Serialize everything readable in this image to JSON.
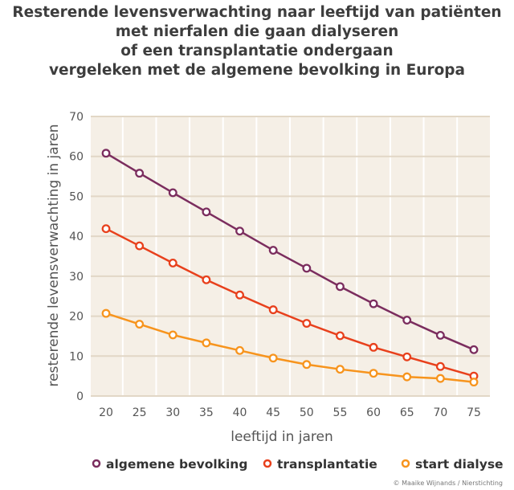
{
  "chart_data": {
    "type": "line",
    "title": [
      "Resterende levensverwachting naar leeftijd van patiënten",
      "met nierfalen die gaan dialyseren",
      "of een transplantatie ondergaan",
      "vergeleken met de algemene bevolking in Europa"
    ],
    "xlabel": "leeftijd in jaren",
    "ylabel": "resterende levensverwachting  in jaren",
    "x": [
      20,
      25,
      30,
      35,
      40,
      45,
      50,
      55,
      60,
      65,
      70,
      75
    ],
    "xticks": [
      "20",
      "25",
      "30",
      "35",
      "40",
      "45",
      "50",
      "55",
      "60",
      "65",
      "70",
      "75"
    ],
    "yticks": [
      "0",
      "10",
      "20",
      "30",
      "40",
      "50",
      "60",
      "70"
    ],
    "ylim": [
      0,
      70
    ],
    "grid": "horizontal",
    "legend_placement": "bottom",
    "series": [
      {
        "name": "algemene bevolking",
        "color": "#7b2d5e",
        "values": [
          60.8,
          55.8,
          50.9,
          46.1,
          41.3,
          36.5,
          32.0,
          27.4,
          23.1,
          19.0,
          15.2,
          11.6
        ]
      },
      {
        "name": "transplantatie",
        "color": "#e8401c",
        "values": [
          41.9,
          37.6,
          33.3,
          29.1,
          25.3,
          21.6,
          18.2,
          15.1,
          12.2,
          9.8,
          7.4,
          5.0
        ]
      },
      {
        "name": "start dialyse",
        "color": "#f7941d",
        "values": [
          20.7,
          18.0,
          15.3,
          13.3,
          11.4,
          9.5,
          7.9,
          6.7,
          5.7,
          4.8,
          4.4,
          3.5
        ]
      }
    ],
    "plot_background": "#f5efe6",
    "gridline_color": "#e2d7c6"
  },
  "credit": "© Maaike Wijnands / Nierstichting"
}
